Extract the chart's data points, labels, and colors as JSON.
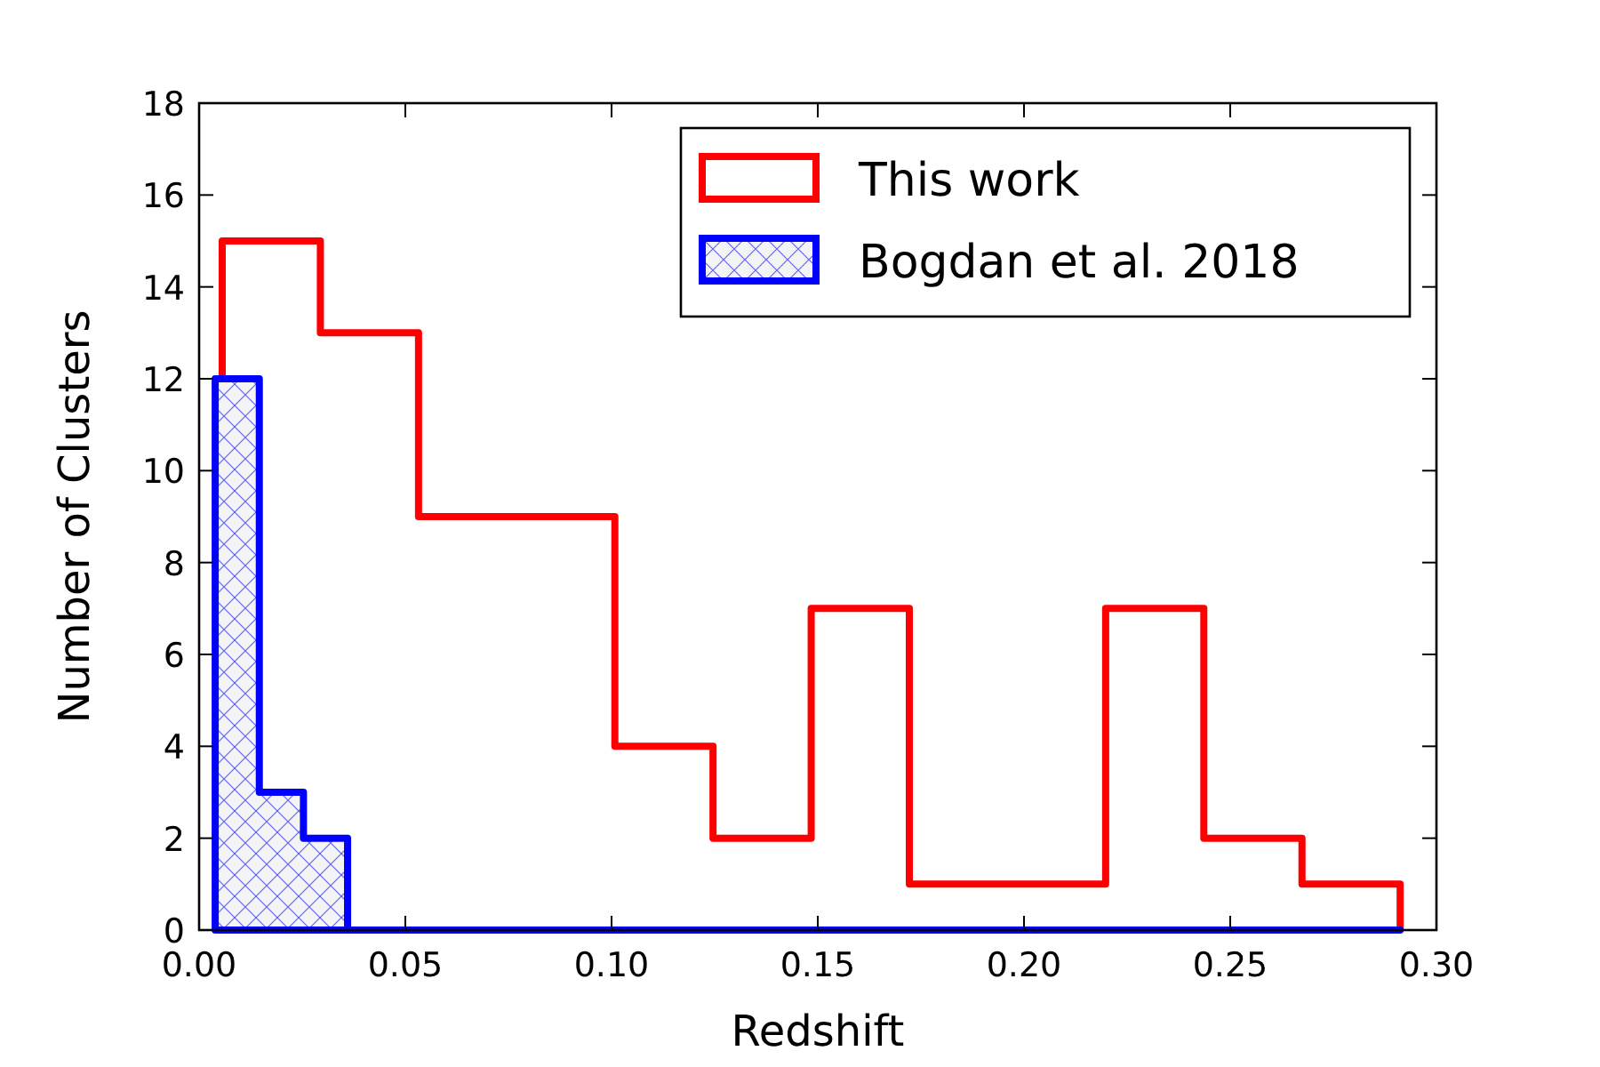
{
  "chart_data": {
    "type": "histogram",
    "xlabel": "Redshift",
    "ylabel": "Number of Clusters",
    "xlim": [
      0,
      0.3
    ],
    "ylim": [
      0,
      18
    ],
    "xticks": [
      {
        "value": 0,
        "label": "0.00"
      },
      {
        "value": 0.05,
        "label": "0.05"
      },
      {
        "value": 0.1,
        "label": "0.10"
      },
      {
        "value": 0.15,
        "label": "0.15"
      },
      {
        "value": 0.2,
        "label": "0.20"
      },
      {
        "value": 0.25,
        "label": "0.25"
      },
      {
        "value": 0.3,
        "label": "0.30"
      }
    ],
    "yticks": [
      0,
      2,
      4,
      6,
      8,
      10,
      12,
      14,
      16,
      18
    ],
    "legend": "top right",
    "bins": [
      0.0039,
      0.0056,
      0.0146,
      0.0253,
      0.0294,
      0.036,
      0.0532,
      0.077,
      0.1008,
      0.1246,
      0.1484,
      0.1722,
      0.196,
      0.2198,
      0.2436,
      0.2674,
      0.2912
    ],
    "series": [
      {
        "name": "This work",
        "color": "#ff0000",
        "values": [
          0,
          15,
          15,
          15,
          13,
          13,
          9,
          9,
          4,
          2,
          7,
          1,
          1,
          7,
          2,
          1
        ]
      },
      {
        "name": "Bogdan et al. 2018",
        "color": "#0000ff",
        "values": [
          12,
          12,
          3,
          2,
          2,
          0,
          0,
          0,
          0,
          0,
          0,
          0,
          0,
          0,
          0,
          0
        ]
      }
    ]
  }
}
